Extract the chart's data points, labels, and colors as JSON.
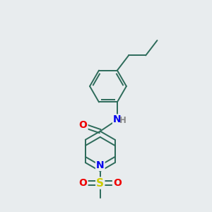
{
  "bg_color": "#e8ecee",
  "bond_color": "#2d6b5a",
  "bond_width": 1.4,
  "atom_colors": {
    "N": "#0000ee",
    "O": "#ee0000",
    "S": "#cccc00",
    "H": "#888888"
  },
  "font_size_atom": 10,
  "font_size_h": 8.5,
  "figsize": [
    3.0,
    3.0
  ],
  "dpi": 100
}
